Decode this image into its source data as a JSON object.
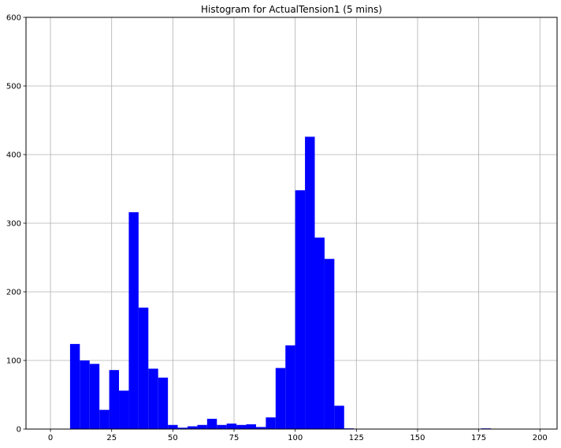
{
  "chart_data": {
    "type": "bar",
    "title": "Histogram for ActualTension1 (5 mins)",
    "xlabel": "",
    "ylabel": "",
    "xlim": [
      -10,
      207
    ],
    "ylim": [
      0,
      600
    ],
    "x_ticks": [
      "0",
      "25",
      "50",
      "75",
      "100",
      "125",
      "150",
      "175",
      "200"
    ],
    "y_ticks": [
      "0",
      "100",
      "200",
      "300",
      "400",
      "500",
      "600"
    ],
    "grid": true,
    "bar_color": "#0000ff",
    "bin_width": 4,
    "bins": [
      {
        "start": 8,
        "value": 124
      },
      {
        "start": 12,
        "value": 100
      },
      {
        "start": 16,
        "value": 95
      },
      {
        "start": 20,
        "value": 28
      },
      {
        "start": 24,
        "value": 86
      },
      {
        "start": 28,
        "value": 56
      },
      {
        "start": 32,
        "value": 316
      },
      {
        "start": 36,
        "value": 177
      },
      {
        "start": 40,
        "value": 88
      },
      {
        "start": 44,
        "value": 75
      },
      {
        "start": 48,
        "value": 6
      },
      {
        "start": 52,
        "value": 2
      },
      {
        "start": 56,
        "value": 4
      },
      {
        "start": 60,
        "value": 6
      },
      {
        "start": 64,
        "value": 15
      },
      {
        "start": 68,
        "value": 6
      },
      {
        "start": 72,
        "value": 8
      },
      {
        "start": 76,
        "value": 6
      },
      {
        "start": 80,
        "value": 7
      },
      {
        "start": 84,
        "value": 3
      },
      {
        "start": 88,
        "value": 17
      },
      {
        "start": 92,
        "value": 89
      },
      {
        "start": 96,
        "value": 122
      },
      {
        "start": 100,
        "value": 348
      },
      {
        "start": 104,
        "value": 426
      },
      {
        "start": 108,
        "value": 279
      },
      {
        "start": 112,
        "value": 248
      },
      {
        "start": 116,
        "value": 34
      },
      {
        "start": 120,
        "value": 1
      },
      {
        "start": 176,
        "value": 1
      }
    ]
  }
}
